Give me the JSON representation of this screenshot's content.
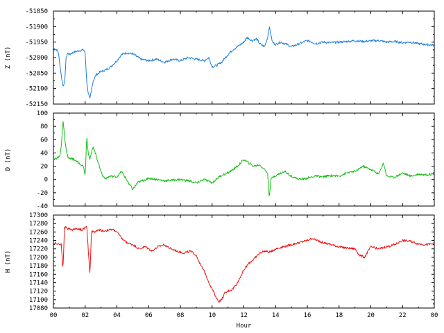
{
  "chart_data": [
    {
      "type": "line",
      "ylabel": "Z (nT)",
      "ylim": [
        -52150,
        -51850
      ],
      "yticks": [
        -51850,
        -51900,
        -51950,
        -52000,
        -52050,
        -52100,
        -52150
      ],
      "xlim": [
        0,
        24
      ],
      "color": "#1c7ee0",
      "series": [
        {
          "x": [
            0,
            0.3,
            0.5,
            0.6,
            0.7,
            0.8,
            0.9,
            1.0,
            1.3,
            1.6,
            1.9,
            2.0,
            2.1,
            2.2,
            2.3,
            2.5,
            2.7,
            3.0,
            3.3,
            3.6,
            4.0,
            4.3,
            4.6,
            5.0,
            5.5,
            6.0,
            6.5,
            7.0,
            7.5,
            8.0,
            8.5,
            9.0,
            9.5,
            9.8,
            10.0,
            10.3,
            10.6,
            11.0,
            11.3,
            11.6,
            12.0,
            12.2,
            12.5,
            12.8,
            13.0,
            13.3,
            13.5,
            13.6,
            13.7,
            13.8,
            14.0,
            14.3,
            14.6,
            15.0,
            15.5,
            16.0,
            16.3,
            16.5,
            17.0,
            17.5,
            18.0,
            18.5,
            19.0,
            19.5,
            20.0,
            20.5,
            21.0,
            21.5,
            22.0,
            22.5,
            23.0,
            23.5,
            24.0
          ],
          "y": [
            -51968,
            -51980,
            -52060,
            -52090,
            -52085,
            -52000,
            -51985,
            -51990,
            -51982,
            -51978,
            -51975,
            -51985,
            -52080,
            -52115,
            -52135,
            -52075,
            -52055,
            -52045,
            -52040,
            -52030,
            -52010,
            -51990,
            -51985,
            -51988,
            -52005,
            -52010,
            -52005,
            -52015,
            -52005,
            -52010,
            -52000,
            -52005,
            -52010,
            -52000,
            -52030,
            -52025,
            -52015,
            -51990,
            -51975,
            -51965,
            -51950,
            -51935,
            -51945,
            -51940,
            -51955,
            -51965,
            -51935,
            -51900,
            -51925,
            -51950,
            -51958,
            -51950,
            -51955,
            -51965,
            -51955,
            -51945,
            -51950,
            -51955,
            -51950,
            -51952,
            -51950,
            -51948,
            -51945,
            -51948,
            -51946,
            -51945,
            -51950,
            -51948,
            -51952,
            -51950,
            -51955,
            -51958,
            -51960
          ]
        }
      ]
    },
    {
      "type": "line",
      "ylabel": "D (nT)",
      "ylim": [
        -40,
        100
      ],
      "yticks": [
        100,
        80,
        60,
        40,
        20,
        0,
        -20,
        -40
      ],
      "xlim": [
        0,
        24
      ],
      "color": "#12bf12",
      "series": [
        {
          "x": [
            0,
            0.2,
            0.4,
            0.5,
            0.6,
            0.7,
            0.8,
            0.9,
            1.0,
            1.3,
            1.6,
            1.9,
            2.0,
            2.1,
            2.2,
            2.3,
            2.5,
            2.7,
            2.9,
            3.1,
            3.3,
            3.6,
            4.0,
            4.3,
            4.6,
            5.0,
            5.3,
            5.6,
            6.0,
            6.5,
            7.0,
            7.5,
            8.0,
            8.5,
            9.0,
            9.5,
            10.0,
            10.5,
            11.0,
            11.3,
            11.6,
            12.0,
            12.3,
            12.6,
            13.0,
            13.3,
            13.5,
            13.6,
            13.7,
            13.9,
            14.2,
            14.6,
            15.0,
            15.5,
            16.0,
            16.5,
            17.0,
            17.5,
            18.0,
            18.5,
            19.0,
            19.5,
            20.0,
            20.5,
            20.8,
            21.0,
            21.5,
            22.0,
            22.5,
            23.0,
            23.5,
            24.0
          ],
          "y": [
            30,
            32,
            35,
            50,
            90,
            65,
            45,
            35,
            32,
            30,
            25,
            20,
            5,
            65,
            40,
            30,
            50,
            35,
            20,
            5,
            2,
            5,
            4,
            12,
            0,
            -15,
            -5,
            -2,
            2,
            0,
            -2,
            -1,
            0,
            -2,
            -5,
            0,
            -5,
            5,
            10,
            15,
            20,
            30,
            25,
            20,
            22,
            15,
            10,
            -28,
            0,
            5,
            8,
            12,
            5,
            0,
            2,
            5,
            4,
            6,
            5,
            10,
            12,
            20,
            15,
            8,
            25,
            5,
            3,
            10,
            5,
            8,
            7,
            9
          ]
        }
      ]
    },
    {
      "type": "line",
      "ylabel": "H (nT)",
      "xlabel": "Hour",
      "ylim": [
        17080,
        17300
      ],
      "yticks": [
        17300,
        17280,
        17260,
        17240,
        17220,
        17200,
        17180,
        17160,
        17140,
        17120,
        17100,
        17080
      ],
      "xlim": [
        0,
        24
      ],
      "xticks": [
        "00",
        "02",
        "04",
        "06",
        "08",
        "10",
        "12",
        "14",
        "16",
        "18",
        "20",
        "22",
        "00"
      ],
      "color": "#ee1010",
      "series": [
        {
          "x": [
            0,
            0.3,
            0.5,
            0.6,
            0.7,
            0.8,
            0.9,
            1.2,
            1.5,
            1.8,
            2.0,
            2.1,
            2.2,
            2.3,
            2.4,
            2.6,
            2.9,
            3.2,
            3.5,
            3.8,
            4.0,
            4.3,
            4.6,
            5.0,
            5.4,
            5.8,
            6.2,
            6.6,
            7.0,
            7.4,
            7.8,
            8.2,
            8.6,
            9.0,
            9.3,
            9.6,
            9.8,
            10.0,
            10.2,
            10.4,
            10.6,
            10.8,
            11.0,
            11.3,
            11.6,
            12.0,
            12.3,
            12.6,
            13.0,
            13.3,
            13.6,
            14.0,
            14.5,
            15.0,
            15.5,
            16.0,
            16.3,
            16.6,
            17.0,
            17.5,
            18.0,
            18.5,
            19.0,
            19.3,
            19.6,
            20.0,
            20.5,
            21.0,
            21.5,
            22.0,
            22.5,
            23.0,
            23.5,
            24.0
          ],
          "y": [
            17235,
            17232,
            17230,
            17170,
            17270,
            17272,
            17268,
            17265,
            17268,
            17265,
            17270,
            17272,
            17215,
            17160,
            17262,
            17260,
            17265,
            17262,
            17265,
            17265,
            17260,
            17245,
            17235,
            17230,
            17220,
            17225,
            17215,
            17225,
            17230,
            17220,
            17215,
            17210,
            17215,
            17205,
            17180,
            17160,
            17140,
            17125,
            17110,
            17095,
            17100,
            17115,
            17120,
            17125,
            17140,
            17170,
            17185,
            17195,
            17210,
            17215,
            17212,
            17220,
            17225,
            17230,
            17235,
            17240,
            17245,
            17240,
            17235,
            17230,
            17225,
            17222,
            17220,
            17205,
            17200,
            17225,
            17220,
            17225,
            17230,
            17240,
            17238,
            17232,
            17230,
            17232
          ]
        }
      ]
    }
  ]
}
